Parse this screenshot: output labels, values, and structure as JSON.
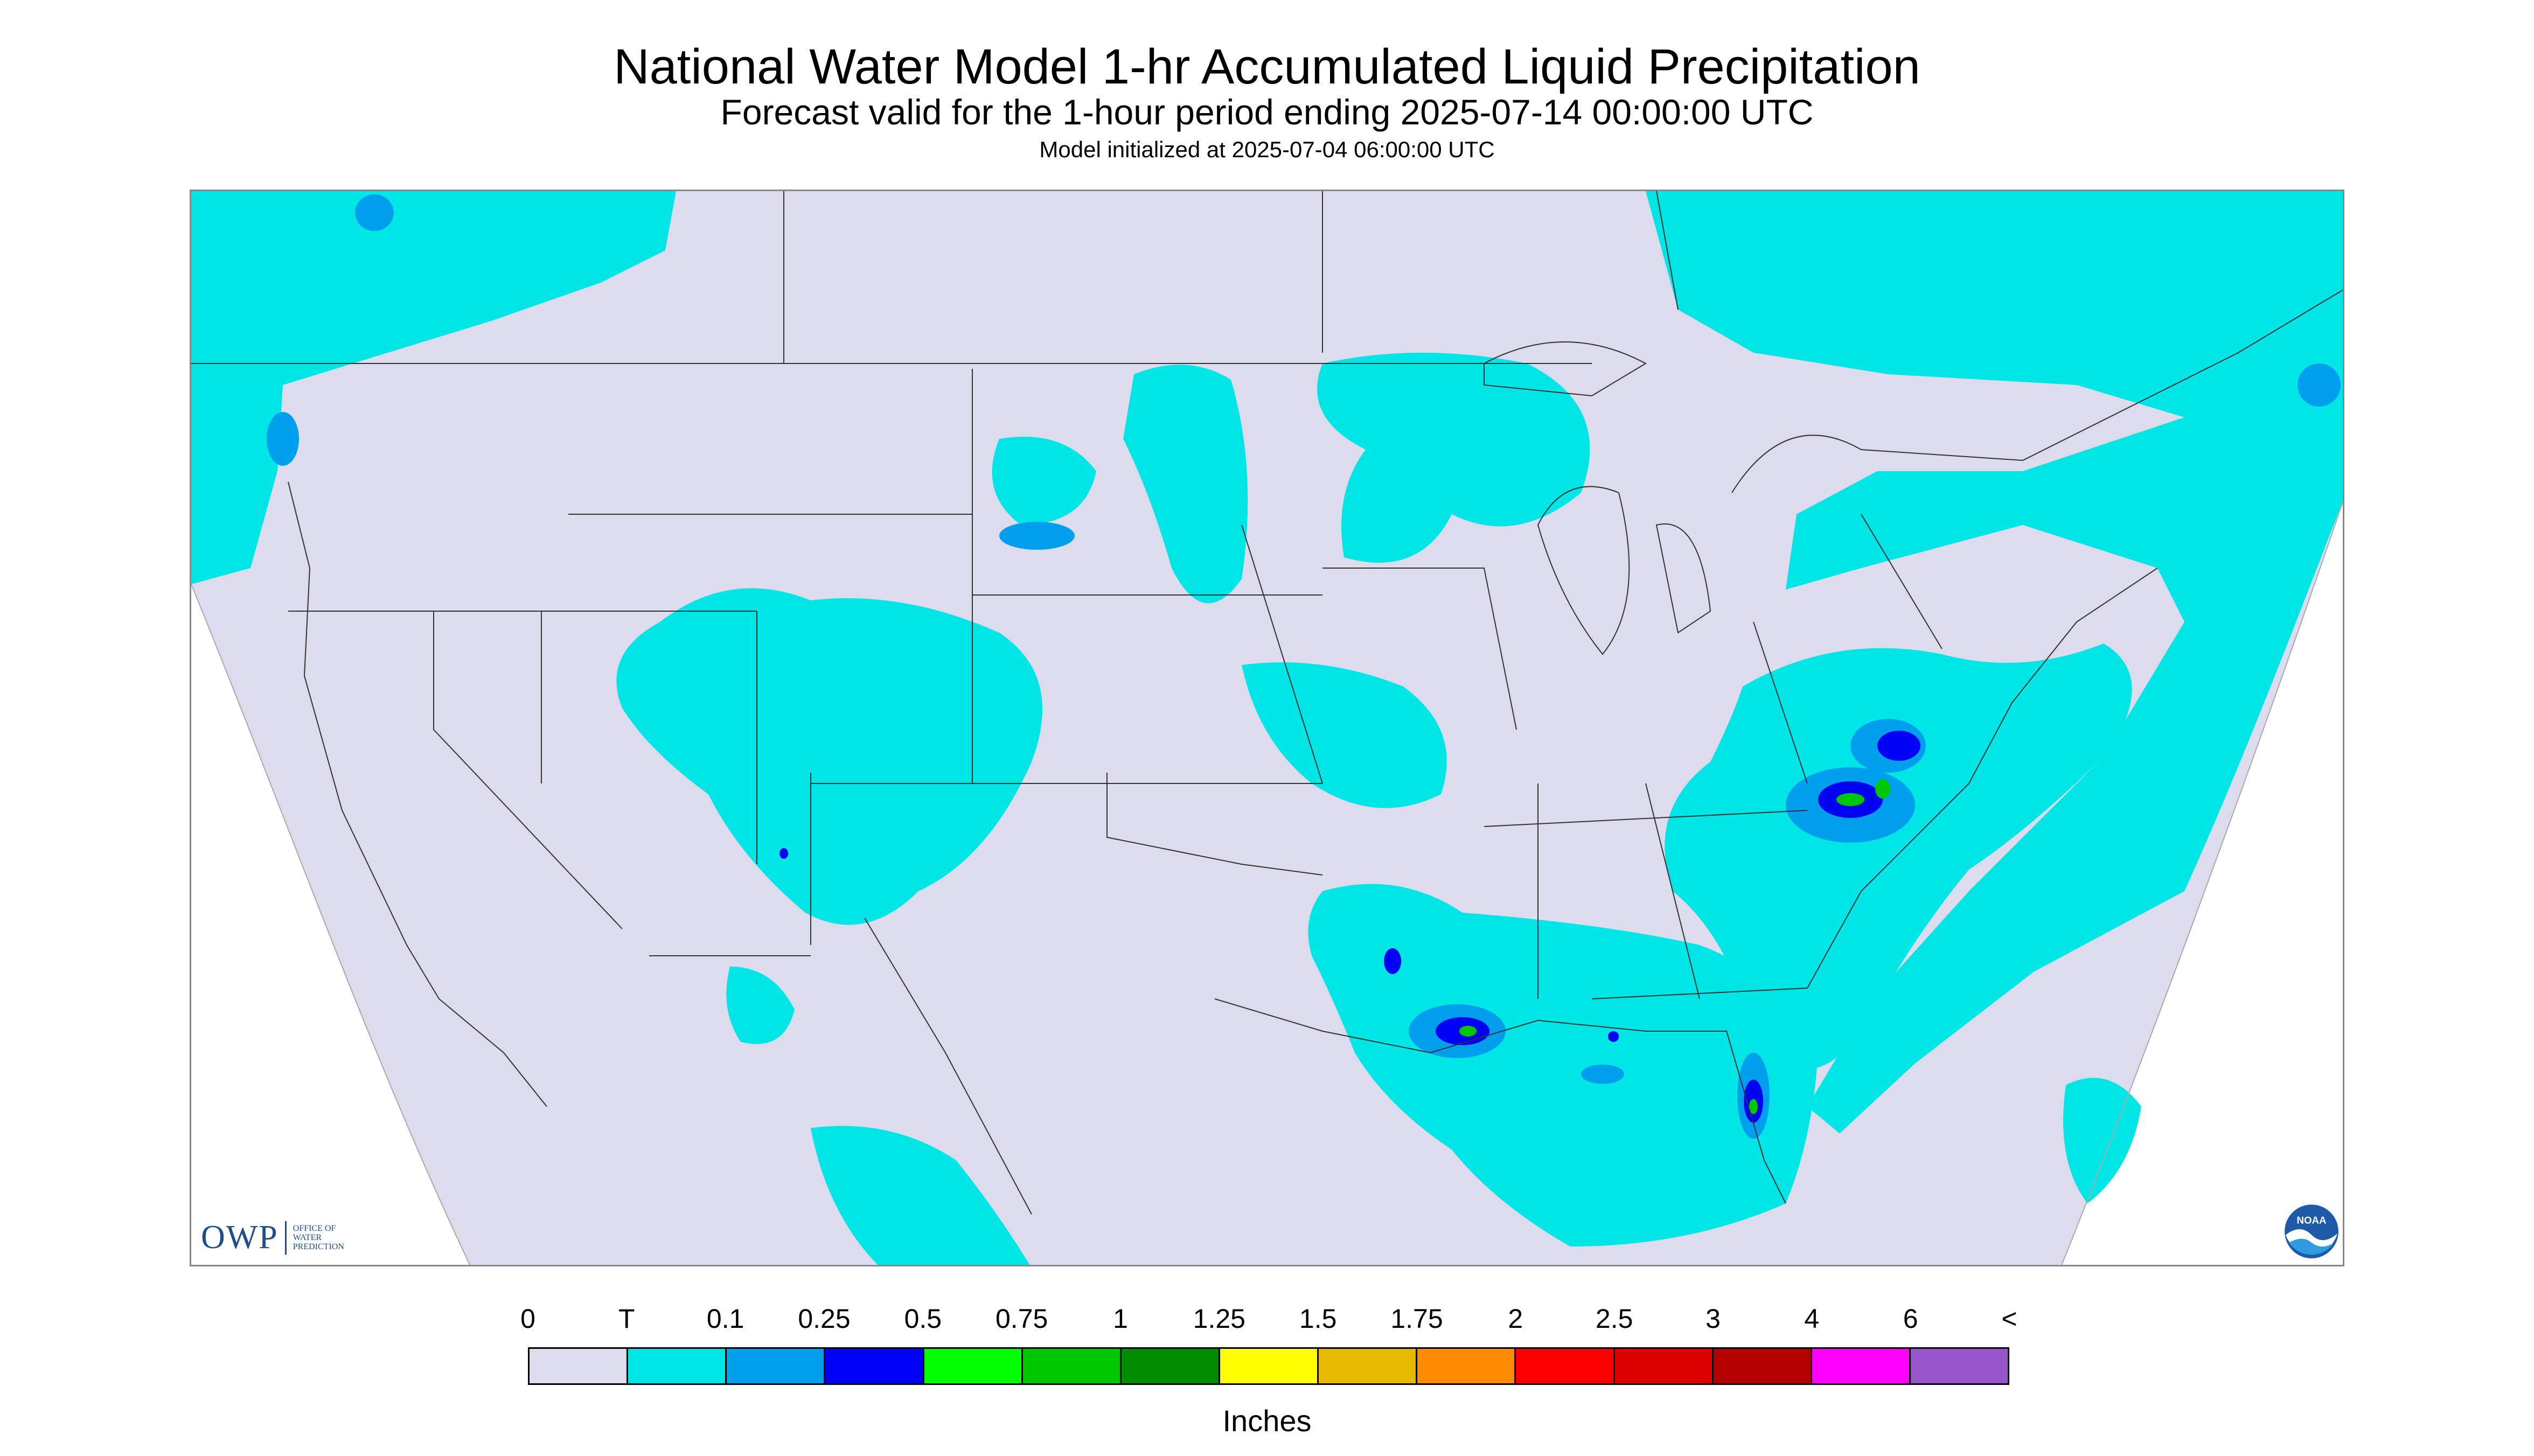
{
  "header": {
    "title": "National Water Model 1-hr Accumulated Liquid Precipitation",
    "subtitle": "Forecast valid for the 1-hour period ending 2025-07-14 00:00:00 UTC",
    "init_line": "Model initialized at 2025-07-04 06:00:00 UTC"
  },
  "logos": {
    "owp_letters": "OWP",
    "owp_lines": [
      "OFFICE OF",
      "WATER",
      "PREDICTION"
    ],
    "noaa": "NOAA"
  },
  "legend": {
    "units": "Inches",
    "labels": [
      "0",
      "T",
      "0.1",
      "0.25",
      "0.5",
      "0.75",
      "1",
      "1.25",
      "1.5",
      "1.75",
      "2",
      "2.5",
      "3",
      "4",
      "6",
      "<"
    ],
    "colors": [
      "#dcdcee",
      "#00e5e5",
      "#009fee",
      "#0000f5",
      "#00ff00",
      "#00c800",
      "#008c00",
      "#ffff00",
      "#e6b800",
      "#ff8c00",
      "#ff0000",
      "#dc0000",
      "#b40000",
      "#ff00ff",
      "#9955cc"
    ]
  },
  "map": {
    "background_color": "#dcdcee",
    "light_precip_color": "#00e5e5",
    "moderate_precip_color": "#009fee",
    "heavy_precip_color": "#0000f5",
    "peak_precip_color": "#00c800",
    "border_color": "#333333"
  }
}
